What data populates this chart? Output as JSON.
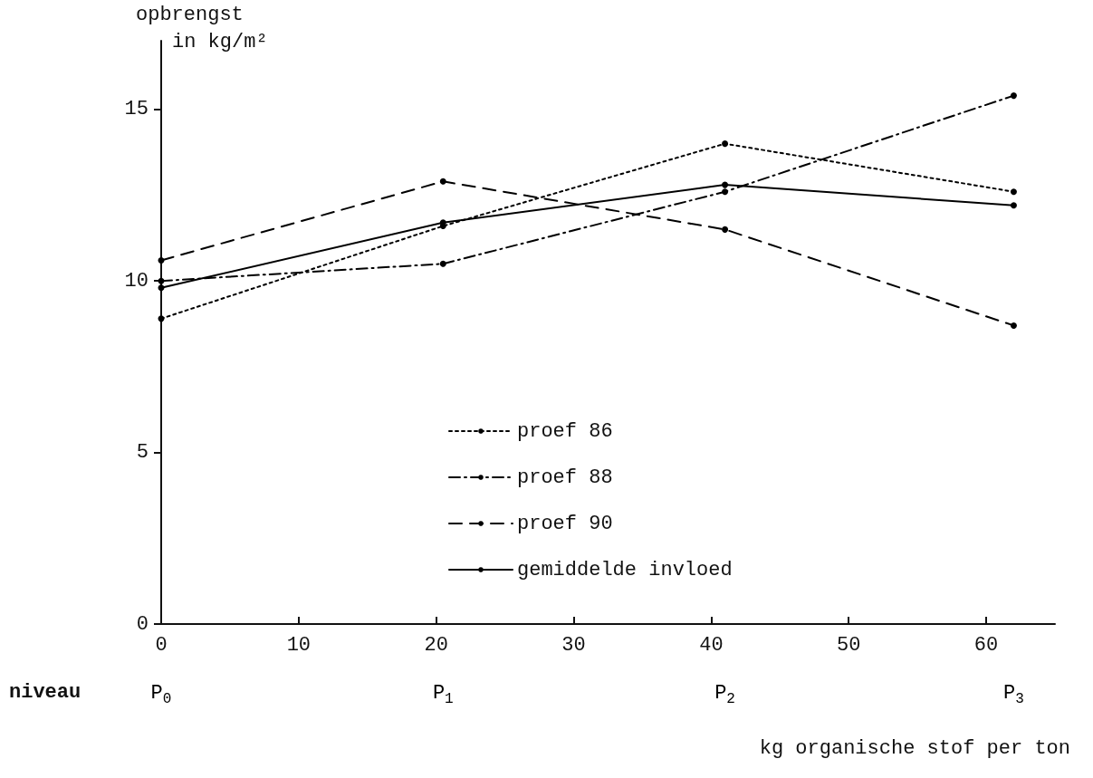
{
  "chart_data": {
    "type": "line",
    "ylabel": "opbrengst\nin kg/m²",
    "xlabel": "kg organische stof per ton",
    "x": [
      0,
      20.5,
      41,
      62
    ],
    "xlim": [
      0,
      65
    ],
    "xticks": [
      0,
      10,
      20,
      30,
      40,
      50,
      60
    ],
    "annotations": [
      "niveau",
      "P$_{0}$",
      "P$_{1}$",
      "P$_{2}$",
      "P$_{3}$"
    ],
    "ylim": [
      0,
      17
    ],
    "yticks": [
      0,
      5,
      10,
      15
    ],
    "series": [
      {
        "name": "proef 86",
        "color": "#000000",
        "line_style": "dotted",
        "values": [
          8.9,
          11.6,
          14.0,
          12.6
        ]
      },
      {
        "name": "proef 88",
        "color": "#000000",
        "line_style": "dashdot",
        "values": [
          10.0,
          10.5,
          12.6,
          15.4
        ]
      },
      {
        "name": "proef 90",
        "color": "#000000",
        "line_style": "dashed",
        "values": [
          10.6,
          12.9,
          11.5,
          8.7
        ]
      },
      {
        "name": "gemiddelde invloed",
        "color": "#000000",
        "line_style": "solid",
        "values": [
          9.8,
          11.7,
          12.8,
          12.2
        ]
      }
    ],
    "marker": "circle",
    "legend": "center",
    "grid": false
  }
}
